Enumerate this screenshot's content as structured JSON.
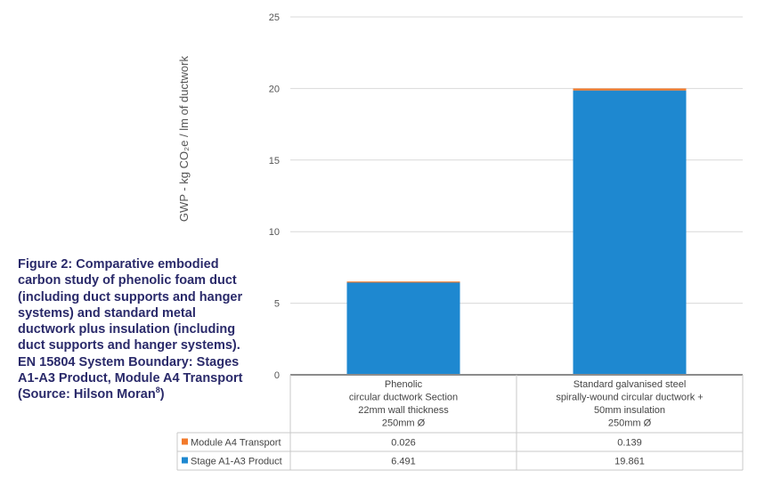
{
  "caption": {
    "text": "Figure 2: Comparative embodied carbon study of phenolic foam duct (including duct supports and hanger systems) and standard metal ductwork plus insulation (including duct supports and hanger systems). EN 15804 System Boundary: Stages A1-A3 Product, Module A4 Transport (Source: Hilson Moran",
    "footnote": "8",
    "close": ")"
  },
  "chart_data": {
    "type": "bar",
    "stacked": true,
    "title": "",
    "ylabel": "GWP - kg CO₂e / lm of ductwork",
    "ylim": [
      0,
      25
    ],
    "yticks": [
      "0",
      "5",
      "10",
      "15",
      "20",
      "25"
    ],
    "categories": [
      [
        "Phenolic",
        "circular ductwork Section",
        "22mm wall thickness",
        "250mm Ø"
      ],
      [
        "Standard galvanised steel",
        "spirally-wound circular ductwork +",
        "50mm insulation",
        "250mm Ø"
      ]
    ],
    "series": [
      {
        "name": "Stage A1-A3 Product",
        "color": "#1e88d0",
        "values": [
          6.491,
          19.861
        ],
        "labels": [
          "6.491",
          "19.861"
        ]
      },
      {
        "name": "Module A4 Transport",
        "color": "#f27a2b",
        "values": [
          0.026,
          0.139
        ],
        "labels": [
          "0.026",
          "0.139"
        ]
      }
    ],
    "grid": true,
    "legend": "data-table"
  }
}
